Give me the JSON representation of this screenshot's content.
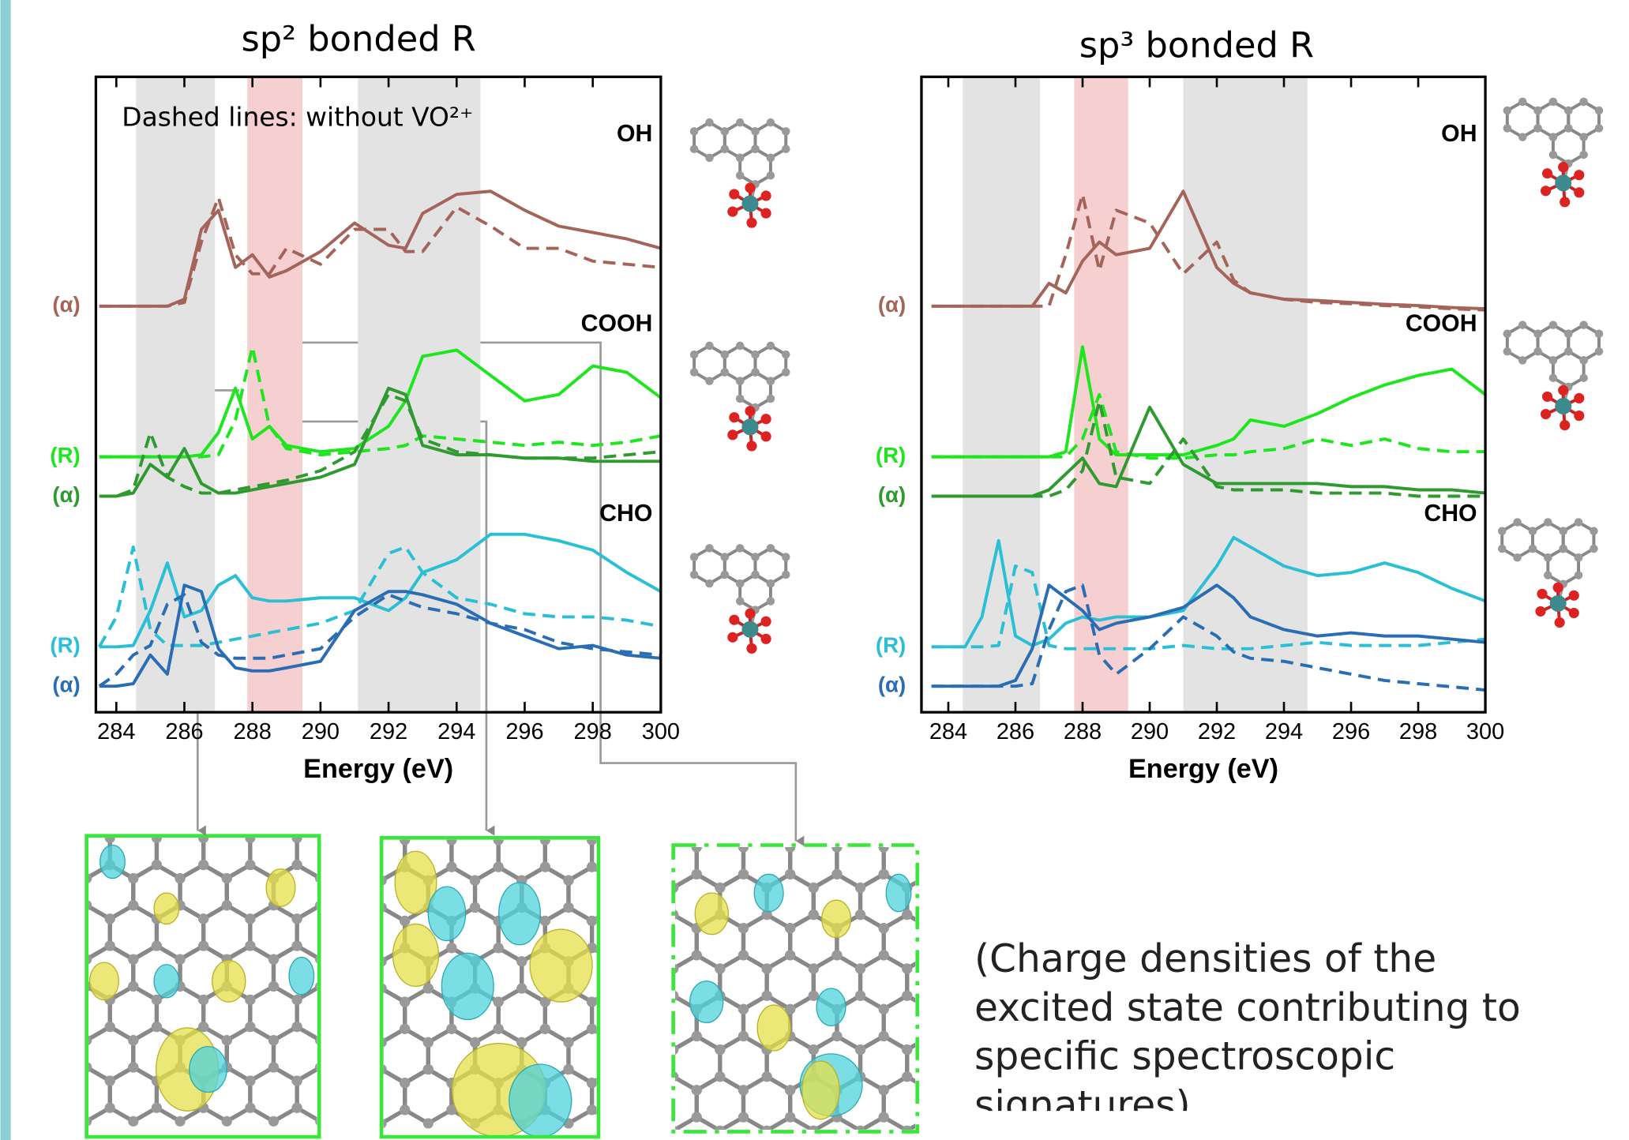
{
  "chart_data": [
    {
      "type": "line",
      "title": "sp² bonded R",
      "xlabel": "Energy  (eV)",
      "note": "Dashed lines: without VO²⁺",
      "x": [
        283.5,
        284,
        284.5,
        285,
        285.5,
        286,
        286.5,
        287,
        287.5,
        288,
        288.5,
        289,
        290,
        291,
        292,
        292.5,
        293,
        294,
        295,
        296,
        297,
        298,
        299,
        300
      ],
      "xlim": [
        283.4,
        300
      ],
      "xticks": [
        284,
        286,
        288,
        290,
        292,
        294,
        296,
        298,
        300
      ],
      "ylim": [
        0,
        10
      ],
      "bands": [
        {
          "range": [
            284.58,
            286.9
          ],
          "color": "#e3e3e3"
        },
        {
          "range": [
            287.85,
            289.47
          ],
          "color": "#f6d0d0"
        },
        {
          "range": [
            291.1,
            294.7
          ],
          "color": "#e3e3e3"
        }
      ],
      "groups": [
        {
          "label": "OH",
          "series": [
            {
              "name": "(α)",
              "color": "#a5645a",
              "values": [
                6.39,
                6.39,
                6.39,
                6.39,
                6.39,
                6.5,
                7.6,
                7.9,
                7.0,
                7.2,
                6.85,
                6.95,
                7.25,
                7.7,
                7.35,
                7.3,
                7.85,
                8.15,
                8.2,
                7.9,
                7.65,
                7.55,
                7.45,
                7.3
              ]
            },
            {
              "color": "#a5645a",
              "dashed": true,
              "values": [
                6.39,
                6.39,
                6.39,
                6.39,
                6.39,
                6.45,
                7.4,
                8.1,
                7.2,
                6.9,
                6.9,
                7.3,
                7.05,
                7.6,
                7.6,
                7.25,
                7.25,
                7.95,
                7.65,
                7.3,
                7.3,
                7.1,
                7.05,
                7.0
              ]
            }
          ]
        },
        {
          "label": "COOH",
          "series": [
            {
              "name": "(R)",
              "color": "#1ee61e",
              "values": [
                4.02,
                4.02,
                4.02,
                4.02,
                4.02,
                4.02,
                4.05,
                4.4,
                5.1,
                4.3,
                4.5,
                4.2,
                4.1,
                4.15,
                4.5,
                4.9,
                5.6,
                5.7,
                5.3,
                4.9,
                5.0,
                5.45,
                5.35,
                4.95
              ]
            },
            {
              "color": "#1ee61e",
              "dashed": true,
              "values": [
                4.02,
                4.02,
                4.02,
                4.02,
                4.02,
                4.02,
                4.02,
                4.05,
                4.6,
                5.75,
                4.5,
                4.15,
                4.05,
                4.1,
                4.15,
                4.2,
                4.35,
                4.3,
                4.25,
                4.2,
                4.25,
                4.2,
                4.25,
                4.35
              ]
            },
            {
              "name": "(α)",
              "color": "#2f9a2f",
              "values": [
                3.4,
                3.4,
                3.45,
                3.9,
                3.7,
                4.15,
                3.6,
                3.45,
                3.45,
                3.5,
                3.55,
                3.6,
                3.7,
                3.9,
                5.1,
                5.0,
                4.2,
                4.05,
                4.05,
                4.0,
                4.0,
                3.95,
                3.95,
                3.95
              ]
            },
            {
              "color": "#2f9a2f",
              "dashed": true,
              "values": [
                3.4,
                3.4,
                3.5,
                4.4,
                3.7,
                3.55,
                3.45,
                3.45,
                3.5,
                3.55,
                3.6,
                3.65,
                3.8,
                4.1,
                5.0,
                4.9,
                4.3,
                4.1,
                4.05,
                4.0,
                4.0,
                4.0,
                4.05,
                4.1
              ]
            }
          ]
        },
        {
          "label": "CHO",
          "series": [
            {
              "name": "(R)",
              "color": "#2bbfd6",
              "values": [
                1.03,
                1.03,
                1.05,
                1.6,
                2.35,
                1.5,
                1.6,
                2.0,
                2.15,
                1.8,
                1.75,
                1.75,
                1.8,
                1.8,
                1.6,
                1.8,
                2.2,
                2.4,
                2.8,
                2.8,
                2.7,
                2.55,
                2.2,
                1.9
              ]
            },
            {
              "color": "#2bbfd6",
              "dashed": true,
              "values": [
                1.03,
                1.5,
                2.6,
                1.3,
                1.05,
                1.05,
                1.05,
                1.1,
                1.15,
                1.2,
                1.25,
                1.3,
                1.4,
                1.6,
                2.5,
                2.6,
                2.2,
                1.8,
                1.7,
                1.55,
                1.5,
                1.5,
                1.45,
                1.35
              ]
            },
            {
              "name": "(α)",
              "color": "#2a6db5",
              "values": [
                0.41,
                0.41,
                0.45,
                0.9,
                0.6,
                2.0,
                1.9,
                1.0,
                0.7,
                0.65,
                0.65,
                0.7,
                0.8,
                1.6,
                1.9,
                1.9,
                1.85,
                1.7,
                1.4,
                1.2,
                1.0,
                1.05,
                0.9,
                0.85
              ]
            },
            {
              "color": "#2a6db5",
              "dashed": true,
              "values": [
                0.41,
                0.6,
                0.9,
                1.05,
                1.7,
                1.85,
                1.1,
                0.9,
                0.85,
                0.85,
                0.85,
                0.9,
                1.0,
                1.5,
                1.85,
                1.75,
                1.65,
                1.55,
                1.4,
                1.3,
                1.1,
                1.0,
                0.95,
                0.9
              ]
            }
          ]
        }
      ]
    },
    {
      "type": "line",
      "title": "sp³ bonded R",
      "xlabel": "Energy  (eV)",
      "x": [
        283.5,
        284,
        284.5,
        285,
        285.5,
        286,
        286.5,
        287,
        287.5,
        288,
        288.5,
        289,
        290,
        291,
        292,
        292.5,
        293,
        294,
        295,
        296,
        297,
        298,
        299,
        300
      ],
      "xlim": [
        283.2,
        300
      ],
      "xticks": [
        284,
        286,
        288,
        290,
        292,
        294,
        296,
        298,
        300
      ],
      "ylim": [
        0,
        10
      ],
      "bands": [
        {
          "range": [
            284.43,
            286.73
          ],
          "color": "#e3e3e3"
        },
        {
          "range": [
            287.75,
            289.36
          ],
          "color": "#f6d0d0"
        },
        {
          "range": [
            291.0,
            294.7
          ],
          "color": "#e3e3e3"
        }
      ],
      "groups": [
        {
          "label": "OH",
          "series": [
            {
              "name": "(α)",
              "color": "#a5645a",
              "values": [
                6.39,
                6.39,
                6.39,
                6.39,
                6.39,
                6.39,
                6.39,
                6.75,
                6.6,
                7.1,
                7.4,
                7.2,
                7.3,
                8.2,
                7.0,
                6.75,
                6.6,
                6.5,
                6.48,
                6.45,
                6.42,
                6.4,
                6.37,
                6.35
              ]
            },
            {
              "color": "#a5645a",
              "dashed": true,
              "values": [
                6.39,
                6.39,
                6.39,
                6.39,
                6.39,
                6.39,
                6.39,
                6.39,
                7.2,
                8.15,
                6.95,
                7.9,
                7.7,
                6.9,
                7.4,
                6.8,
                6.6,
                6.5,
                6.45,
                6.43,
                6.4,
                6.38,
                6.35,
                6.33
              ]
            }
          ]
        },
        {
          "label": "COOH",
          "series": [
            {
              "name": "(R)",
              "color": "#1ee61e",
              "values": [
                4.02,
                4.02,
                4.02,
                4.02,
                4.02,
                4.02,
                4.02,
                4.02,
                4.1,
                5.75,
                4.3,
                4.05,
                4.05,
                4.05,
                4.2,
                4.3,
                4.6,
                4.5,
                4.7,
                4.95,
                5.15,
                5.3,
                5.4,
                5.0
              ]
            },
            {
              "color": "#1ee61e",
              "dashed": true,
              "values": [
                4.02,
                4.02,
                4.02,
                4.02,
                4.02,
                4.02,
                4.02,
                4.02,
                4.02,
                4.3,
                5.0,
                4.1,
                4.0,
                4.0,
                4.05,
                4.05,
                4.1,
                4.15,
                4.3,
                4.2,
                4.3,
                4.15,
                4.1,
                4.1
              ]
            },
            {
              "name": "(α)",
              "color": "#2f9a2f",
              "values": [
                3.4,
                3.4,
                3.4,
                3.4,
                3.4,
                3.4,
                3.4,
                3.5,
                3.75,
                4.0,
                3.6,
                3.55,
                4.8,
                3.9,
                3.6,
                3.6,
                3.6,
                3.6,
                3.6,
                3.55,
                3.55,
                3.5,
                3.5,
                3.45
              ]
            },
            {
              "color": "#2f9a2f",
              "dashed": true,
              "values": [
                3.4,
                3.4,
                3.4,
                3.4,
                3.4,
                3.4,
                3.4,
                3.4,
                3.5,
                3.8,
                4.9,
                3.7,
                3.6,
                4.3,
                3.55,
                3.5,
                3.5,
                3.5,
                3.45,
                3.45,
                3.45,
                3.4,
                3.4,
                3.4
              ]
            }
          ]
        },
        {
          "label": "CHO",
          "series": [
            {
              "name": "(R)",
              "color": "#2bbfd6",
              "values": [
                1.03,
                1.03,
                1.03,
                1.5,
                2.7,
                1.2,
                1.05,
                1.15,
                1.4,
                1.5,
                1.45,
                1.5,
                1.5,
                1.6,
                2.3,
                2.75,
                2.6,
                2.3,
                2.15,
                2.2,
                2.35,
                2.2,
                1.95,
                1.75
              ]
            },
            {
              "color": "#2bbfd6",
              "dashed": true,
              "values": [
                1.03,
                1.03,
                1.03,
                1.03,
                1.05,
                2.3,
                2.2,
                1.05,
                1.0,
                1.0,
                1.0,
                1.0,
                1.0,
                1.05,
                1.0,
                1.0,
                1.0,
                1.05,
                1.1,
                1.05,
                1.05,
                1.05,
                1.1,
                1.15
              ]
            },
            {
              "name": "(α)",
              "color": "#2a6db5",
              "values": [
                0.41,
                0.41,
                0.41,
                0.41,
                0.41,
                0.5,
                1.0,
                2.0,
                1.8,
                1.6,
                1.3,
                1.4,
                1.5,
                1.65,
                2.0,
                1.8,
                1.5,
                1.3,
                1.2,
                1.25,
                1.2,
                1.2,
                1.15,
                1.1
              ]
            },
            {
              "color": "#2a6db5",
              "dashed": true,
              "values": [
                0.41,
                0.41,
                0.41,
                0.41,
                0.41,
                0.41,
                0.45,
                1.3,
                1.9,
                2.0,
                0.9,
                0.6,
                1.0,
                1.5,
                1.2,
                0.95,
                0.85,
                0.8,
                0.7,
                0.6,
                0.5,
                0.45,
                0.4,
                0.35
              ]
            }
          ]
        }
      ]
    }
  ],
  "caption": "(Charge densities of the excited state contributing to specific spectroscopic signatures)"
}
